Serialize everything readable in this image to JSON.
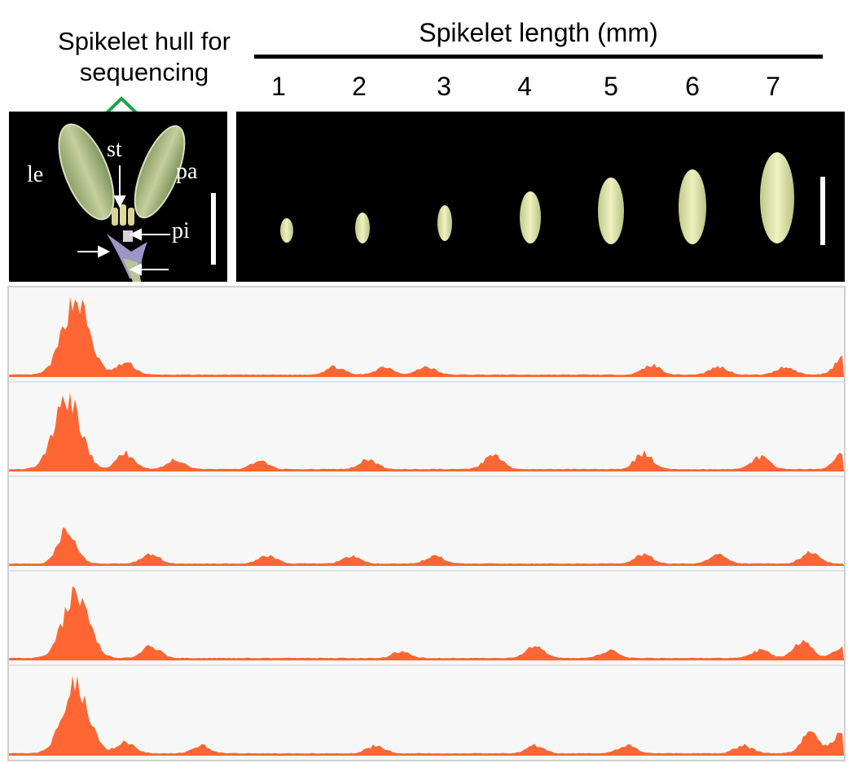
{
  "header": {
    "hull_label": "Spikelet hull for sequencing",
    "length_label": "Spikelet length (mm)"
  },
  "lengths_mm": [
    "1",
    "2",
    "3",
    "4",
    "5",
    "6",
    "7"
  ],
  "dissection": {
    "lemma": "le",
    "stamen": "st",
    "palea": "pa",
    "pistil": "pi"
  },
  "colors": {
    "signal": "#ff6633",
    "bracket": "#1aa34a",
    "photo_background": "#000000",
    "track_background": "#f7f7f7",
    "spikelet": "#e8efb0"
  },
  "tracks": [
    {
      "peaks": [
        [
          0.08,
          0.95
        ],
        [
          0.14,
          0.15
        ],
        [
          0.39,
          0.1
        ],
        [
          0.45,
          0.1
        ],
        [
          0.5,
          0.1
        ],
        [
          0.77,
          0.12
        ],
        [
          0.85,
          0.1
        ],
        [
          0.93,
          0.1
        ],
        [
          1.0,
          0.22
        ]
      ]
    },
    {
      "peaks": [
        [
          0.07,
          0.9
        ],
        [
          0.14,
          0.2
        ],
        [
          0.2,
          0.12
        ],
        [
          0.3,
          0.1
        ],
        [
          0.43,
          0.12
        ],
        [
          0.58,
          0.18
        ],
        [
          0.76,
          0.2
        ],
        [
          0.9,
          0.15
        ],
        [
          1.0,
          0.2
        ]
      ]
    },
    {
      "peaks": [
        [
          0.07,
          0.45
        ],
        [
          0.17,
          0.12
        ],
        [
          0.31,
          0.1
        ],
        [
          0.41,
          0.1
        ],
        [
          0.51,
          0.1
        ],
        [
          0.76,
          0.12
        ],
        [
          0.85,
          0.12
        ],
        [
          0.96,
          0.15
        ]
      ]
    },
    {
      "peaks": [
        [
          0.08,
          0.8
        ],
        [
          0.17,
          0.15
        ],
        [
          0.47,
          0.08
        ],
        [
          0.63,
          0.15
        ],
        [
          0.72,
          0.1
        ],
        [
          0.9,
          0.1
        ],
        [
          0.95,
          0.22
        ],
        [
          1.0,
          0.15
        ]
      ]
    },
    {
      "peaks": [
        [
          0.08,
          0.88
        ],
        [
          0.14,
          0.15
        ],
        [
          0.23,
          0.1
        ],
        [
          0.44,
          0.1
        ],
        [
          0.63,
          0.1
        ],
        [
          0.74,
          0.1
        ],
        [
          0.88,
          0.1
        ],
        [
          0.96,
          0.25
        ],
        [
          1.0,
          0.3
        ]
      ]
    }
  ]
}
